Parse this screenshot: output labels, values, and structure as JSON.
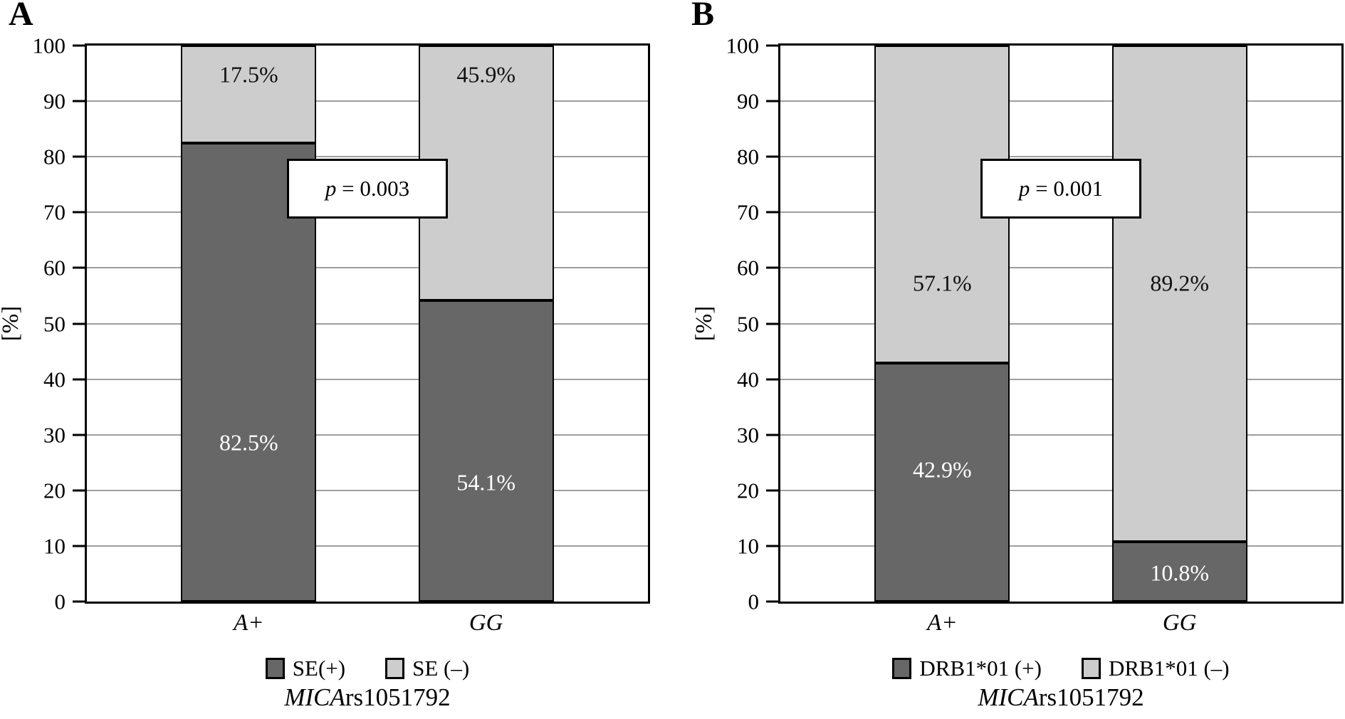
{
  "colors": {
    "dark_series": "#676767",
    "light_series": "#cdcdcd",
    "gridline": "#9e9e9e",
    "border": "#000000",
    "background": "#ffffff"
  },
  "chart_data": [
    {
      "panel_label": "A",
      "type": "bar",
      "stacked": true,
      "categories": [
        "A+",
        "GG"
      ],
      "series": [
        {
          "name": "SE(+)",
          "color": "#676767",
          "values": [
            82.5,
            54.1
          ],
          "value_labels": [
            "82.5%",
            "54.1%"
          ],
          "label_color": "#ffffff",
          "label_y_pct": [
            28.6,
            21.4
          ]
        },
        {
          "name": "SE (–)",
          "color": "#cdcdcd",
          "values": [
            17.5,
            45.9
          ],
          "value_labels": [
            "17.5%",
            "45.9%"
          ],
          "label_color": "#111111",
          "label_y_pct": [
            94.8,
            94.8
          ]
        }
      ],
      "annotation": {
        "var": "p",
        "rest": " = 0.003",
        "text": "p = 0.003"
      },
      "ylabel": "[%]",
      "ylim": [
        0,
        100
      ],
      "yticks": [
        0,
        10,
        20,
        30,
        40,
        50,
        60,
        70,
        80,
        90,
        100
      ],
      "grid": true,
      "legend_position": "bottom",
      "xtitle": {
        "italic": "MICA",
        "rest": "rs1051792",
        "text": "MICArs1051792"
      }
    },
    {
      "panel_label": "B",
      "type": "bar",
      "stacked": true,
      "categories": [
        "A+",
        "GG"
      ],
      "series": [
        {
          "name": "DRB1*01 (+)",
          "color": "#676767",
          "values": [
            42.9,
            10.8
          ],
          "value_labels": [
            "42.9%",
            "10.8%"
          ],
          "label_color": "#ffffff",
          "label_y_pct": [
            23.7,
            5.1
          ]
        },
        {
          "name": "DRB1*01 (–)",
          "color": "#cdcdcd",
          "values": [
            57.1,
            89.2
          ],
          "value_labels": [
            "57.1%",
            "89.2%"
          ],
          "label_color": "#111111",
          "label_y_pct": [
            57.2,
            57.2
          ]
        }
      ],
      "annotation": {
        "var": "p",
        "rest": " = 0.001",
        "text": "p = 0.001"
      },
      "ylabel": "[%]",
      "ylim": [
        0,
        100
      ],
      "yticks": [
        0,
        10,
        20,
        30,
        40,
        50,
        60,
        70,
        80,
        90,
        100
      ],
      "grid": true,
      "legend_position": "bottom",
      "xtitle": {
        "italic": "MICA",
        "rest": "rs1051792",
        "text": "MICArs1051792"
      }
    }
  ]
}
